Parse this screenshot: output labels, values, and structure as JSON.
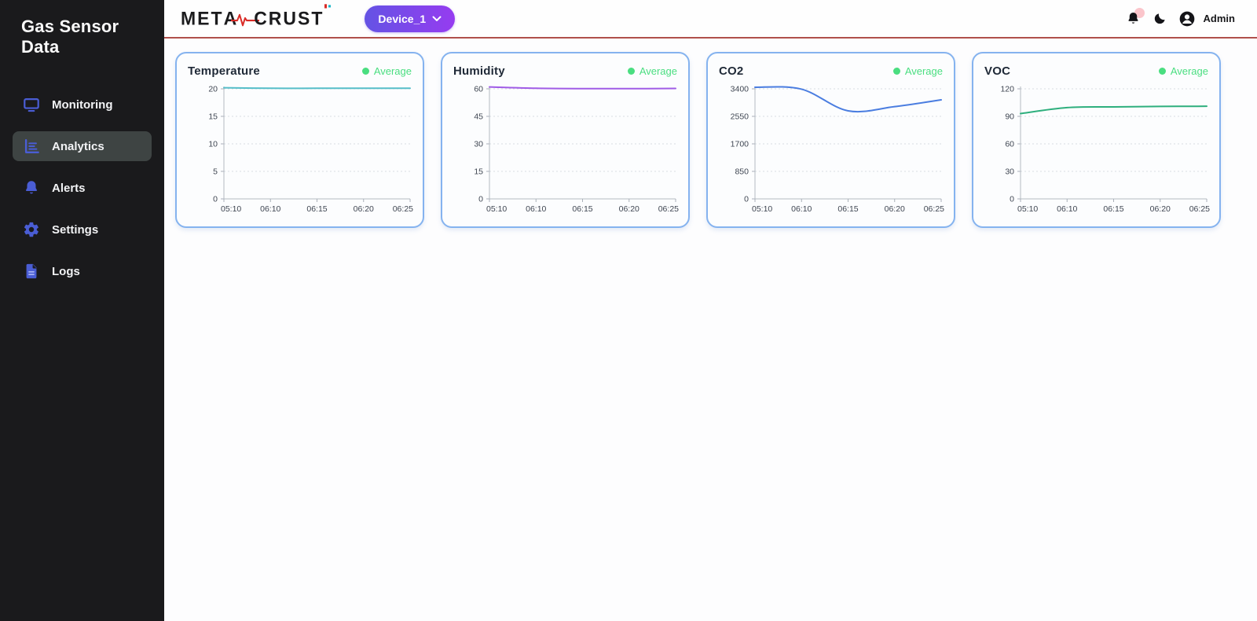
{
  "app": {
    "title": "Gas Sensor Data"
  },
  "sidebar": {
    "items": [
      {
        "label": "Monitoring",
        "icon": "monitor-icon",
        "active": false
      },
      {
        "label": "Analytics",
        "icon": "bar-chart-icon",
        "active": true
      },
      {
        "label": "Alerts",
        "icon": "bell-icon",
        "active": false
      },
      {
        "label": "Settings",
        "icon": "gear-icon",
        "active": false
      },
      {
        "label": "Logs",
        "icon": "file-icon",
        "active": false
      }
    ]
  },
  "header": {
    "logo": {
      "left": "MET",
      "mid": "A",
      "right": "CRUST"
    },
    "device_selector": {
      "label": "Device_1"
    },
    "user_label": "Admin"
  },
  "colors": {
    "sidebar_bg": "#1a1a1c",
    "sidebar_active_bg": "#3e4443",
    "sidebar_icon_indigo": "#4a5dd4",
    "header_divider_red": "#b0504b",
    "device_gradient_from": "#6453e4",
    "device_gradient_to": "#963cf0",
    "card_border_blue": "#85b3ef",
    "legend_green": "#4ade80",
    "logo_pulse_red": "#d92b26"
  },
  "chart_data": [
    {
      "type": "line",
      "title": "Temperature",
      "legend_label": "Average",
      "legend_position": "top-right",
      "grid": "dashed-horizontal",
      "x": [
        "05:10",
        "06:10",
        "06:15",
        "06:20",
        "06:25"
      ],
      "y_ticks": [
        0,
        5,
        10,
        15,
        20
      ],
      "ylim": [
        0,
        20
      ],
      "series": [
        {
          "name": "Average",
          "color": "#56bec9",
          "values": [
            20.2,
            20.1,
            20.1,
            20.1,
            20.1
          ]
        }
      ]
    },
    {
      "type": "line",
      "title": "Humidity",
      "legend_label": "Average",
      "legend_position": "top-right",
      "grid": "dashed-horizontal",
      "x": [
        "05:10",
        "06:10",
        "06:15",
        "06:20",
        "06:25"
      ],
      "y_ticks": [
        0,
        15,
        30,
        45,
        60
      ],
      "ylim": [
        0,
        60
      ],
      "series": [
        {
          "name": "Average",
          "color": "#a05ce6",
          "values": [
            61,
            60.3,
            60.1,
            60.1,
            60.2
          ]
        }
      ]
    },
    {
      "type": "line",
      "title": "CO2",
      "legend_label": "Average",
      "legend_position": "top-right",
      "grid": "dashed-horizontal",
      "x": [
        "05:10",
        "06:10",
        "06:15",
        "06:20",
        "06:25"
      ],
      "y_ticks": [
        0,
        850,
        1700,
        2550,
        3400
      ],
      "ylim": [
        0,
        3400
      ],
      "series": [
        {
          "name": "Average",
          "color": "#4a7de0",
          "values": [
            3450,
            3390,
            2720,
            2850,
            3060
          ]
        }
      ]
    },
    {
      "type": "line",
      "title": "VOC",
      "legend_label": "Average",
      "legend_position": "top-right",
      "grid": "dashed-horizontal",
      "x": [
        "05:10",
        "06:10",
        "06:15",
        "06:20",
        "06:25"
      ],
      "y_ticks": [
        0,
        30,
        60,
        90,
        120
      ],
      "ylim": [
        0,
        120
      ],
      "series": [
        {
          "name": "Average",
          "color": "#2eaf7d",
          "values": [
            93,
            99.5,
            100.3,
            100.8,
            101
          ]
        }
      ]
    }
  ]
}
